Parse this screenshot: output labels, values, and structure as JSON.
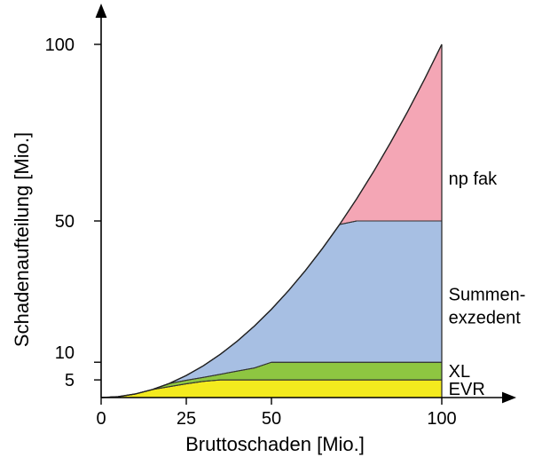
{
  "chart_data": {
    "type": "area",
    "xlabel": "Bruttoschaden [Mio.]",
    "ylabel": "Schadenaufteilung [Mio.]",
    "xlim": [
      0,
      100
    ],
    "ylim": [
      0,
      100
    ],
    "grid": false,
    "x_ticks": [
      0,
      25,
      50,
      100
    ],
    "y_ticks": [
      5,
      10,
      50,
      100
    ],
    "x": [
      0,
      5,
      10,
      15,
      20,
      25,
      30,
      35,
      40,
      45,
      50,
      55,
      60,
      65,
      70,
      75,
      80,
      85,
      90,
      95,
      100
    ],
    "bounds": {
      "gross": [
        0,
        0.25,
        1,
        2.25,
        4,
        6.25,
        9,
        12.25,
        16,
        20.25,
        25,
        30.25,
        36,
        42.25,
        49,
        56.25,
        64,
        72.25,
        81,
        90.25,
        100
      ],
      "evr_top": [
        0,
        0.25,
        1,
        2.25,
        3.1,
        3.9,
        4.6,
        5,
        5,
        5,
        5,
        5,
        5,
        5,
        5,
        5,
        5,
        5,
        5,
        5,
        5
      ],
      "xl_top": [
        0,
        0.25,
        1,
        2.25,
        4,
        4.9,
        5.7,
        6.6,
        7.5,
        8.4,
        10,
        10,
        10,
        10,
        10,
        10,
        10,
        10,
        10,
        10,
        10
      ],
      "sum_top": [
        0,
        0.25,
        1,
        2.25,
        4,
        6.25,
        9,
        12.25,
        16,
        20.25,
        25,
        30.25,
        36,
        42.25,
        49,
        50,
        50,
        50,
        50,
        50,
        50
      ]
    },
    "series": [
      {
        "name": "EVR",
        "color": "#f3ea1e",
        "lower": "zero",
        "upper": "evr_top",
        "label_lines": [
          "EVR"
        ],
        "label_at": [
          102,
          2.5
        ]
      },
      {
        "name": "XL",
        "color": "#8ec641",
        "lower": "evr_top",
        "upper": "xl_top",
        "label_lines": [
          "XL"
        ],
        "label_at": [
          102,
          7.5
        ]
      },
      {
        "name": "Summenexzedent",
        "color": "#a7bfe3",
        "lower": "xl_top",
        "upper": "sum_top",
        "label_lines": [
          "Summen-",
          "exzedent"
        ],
        "label_at": [
          102,
          26
        ]
      },
      {
        "name": "np fak",
        "color": "#f4a6b5",
        "lower": "sum_top",
        "upper": "gross",
        "label_lines": [
          "np fak"
        ],
        "label_at": [
          102,
          62
        ]
      }
    ]
  }
}
